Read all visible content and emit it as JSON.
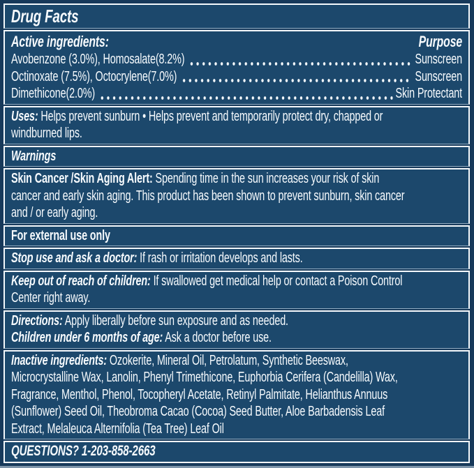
{
  "label": {
    "title": "Drug Facts",
    "active_ingredients": {
      "heading": "Active ingredients:",
      "purpose_heading": "Purpose",
      "rows": [
        {
          "name": "Avobenzone (3.0%), Homosalate(8.2%)",
          "purpose": "Sunscreen"
        },
        {
          "name": "Octinoxate (7.5%), Octocrylene(7.0%)",
          "purpose": "Sunscreen"
        },
        {
          "name": "Dimethicone(2.0%)",
          "purpose": "Skin Protectant"
        }
      ]
    },
    "uses": {
      "label": "Uses:",
      "text": " Helps prevent sunburn • Helps prevent and temporarily protect dry, chapped or\nwindburned lips."
    },
    "warnings_heading": "Warnings",
    "skin_cancer_alert": {
      "label": "Skin Cancer /Skin Aging Alert:",
      "text": " Spending time in the sun increases your risk of skin\ncancer and early skin aging. This product has been shown to prevent sunburn, skin cancer\nand / or early aging."
    },
    "external_use": "For external use only",
    "stop_use": {
      "label": "Stop use and ask a doctor:",
      "text": " If rash or irritation develops and lasts."
    },
    "keep_out": {
      "label": "Keep out of reach of children:",
      "text": " If swallowed get medical help or contact a Poison Control\nCenter right away."
    },
    "directions": {
      "label": "Directions:",
      "text": " Apply liberally before sun exposure and as needed."
    },
    "children": {
      "label": "Children under 6 months of age:",
      "text": " Ask a doctor before use."
    },
    "inactive": {
      "label": "Inactive ingredients:",
      "text": " Ozokerite, Mineral Oil, Petrolatum, Synthetic Beeswax,\nMicrocrystalline Wax, Lanolin, Phenyl Trimethicone, Euphorbia Cerifera (Candelilla) Wax,\nFragrance, Menthol, Phenol, Tocopheryl Acetate, Retinyl Palmitate, Helianthus Annuus\n(Sunflower) Seed Oil, Theobroma Cacao (Cocoa) Seed Butter, Aloe Barbadensis Leaf\nExtract, Melaleuca Alternifolia (Tea Tree) Leaf Oil"
    },
    "questions": "QUESTIONS? 1-203-858-2663",
    "colors": {
      "panel_background": "#1c486c",
      "outer_margin": "#17395a",
      "rule_white": "#f5f9fc",
      "rule_dim_blue": "#93adc2",
      "text": "#f7fbfe"
    }
  }
}
